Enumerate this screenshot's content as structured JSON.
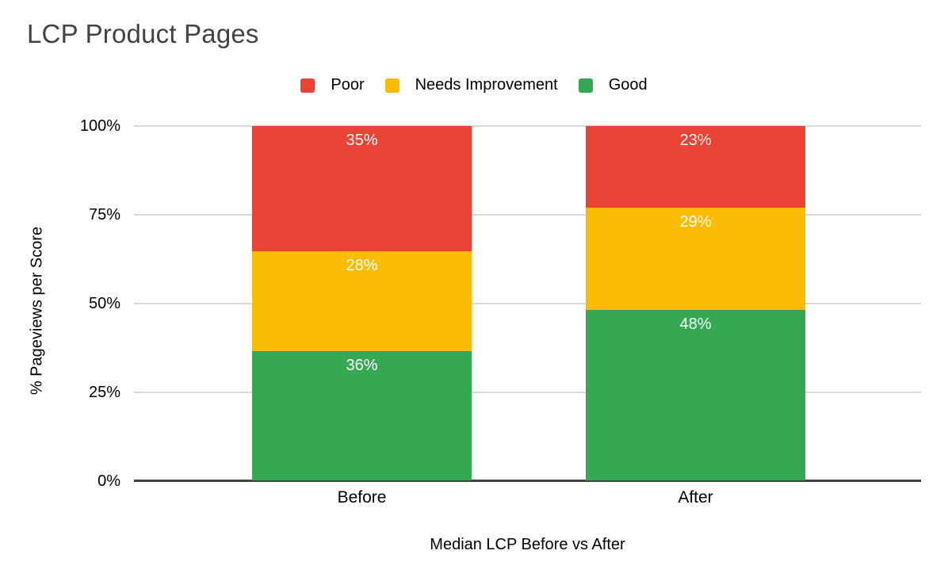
{
  "chart_data": {
    "type": "bar",
    "variant": "stacked-column-100",
    "title": "LCP Product Pages",
    "categories": [
      "Before",
      "After"
    ],
    "series": [
      {
        "name": "Poor",
        "color": "#ea4335",
        "values": [
          35,
          23
        ],
        "labels": [
          "35%",
          "23%"
        ]
      },
      {
        "name": "Needs Improvement",
        "color": "#fbbc04",
        "values": [
          28,
          29
        ],
        "labels": [
          "28%",
          "29%"
        ]
      },
      {
        "name": "Good",
        "color": "#34a853",
        "values": [
          36,
          48
        ],
        "labels": [
          "36%",
          "48%"
        ]
      }
    ],
    "xlabel": "Median LCP Before vs After",
    "ylabel": "% Pageviews per Score",
    "ylim": [
      0,
      100
    ],
    "y_ticks": [
      "100%",
      "75%",
      "50%",
      "25%",
      "0%"
    ],
    "grid": true,
    "legend_position": "top",
    "data_label_color": "#ffffff"
  },
  "colors": {
    "background": "#ffffff",
    "title_text": "#424242",
    "axis_text": "#000000",
    "gridline": "#d9d9d9",
    "axis_line": "#424242"
  }
}
